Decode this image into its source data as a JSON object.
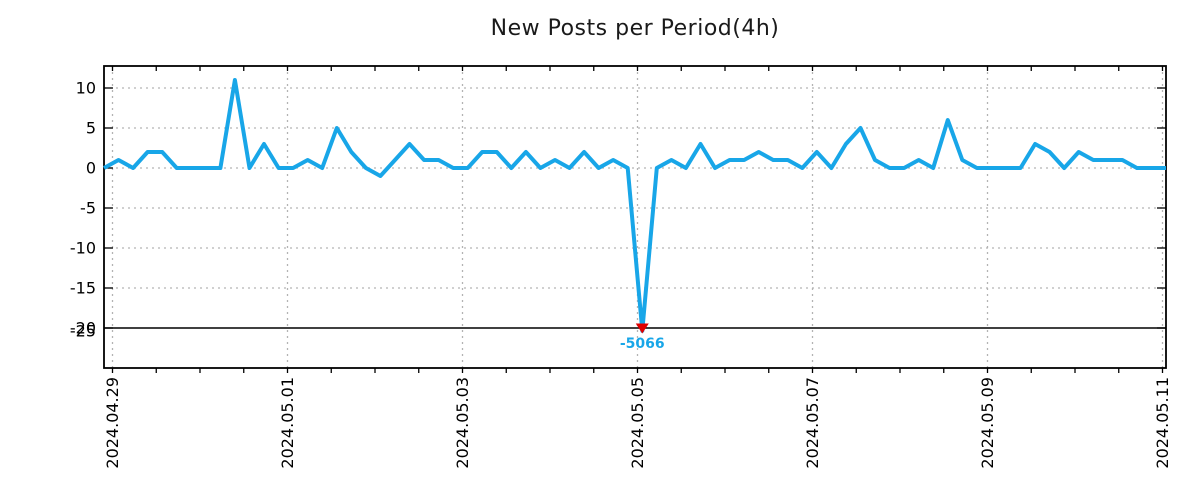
{
  "chart_data": {
    "type": "line",
    "title": "New Posts per Period(4h)",
    "x_axis": {
      "tick_labels": [
        "2024.04.29",
        "2024.05.01",
        "2024.05.03",
        "2024.05.05",
        "2024.05.07",
        "2024.05.09",
        "2024.05.11"
      ],
      "period": "4h",
      "points_per_day": 6,
      "label_rotation_deg": -90
    },
    "y_axis": {
      "tick_labels": [
        "10",
        "5",
        "0",
        "-5",
        "-10",
        "-15",
        "-20",
        "-25"
      ],
      "tick_values": [
        10,
        5,
        0,
        -5,
        -10,
        -15,
        -20,
        -25
      ],
      "grid_values": [
        10,
        5,
        0,
        -5,
        -10,
        -15
      ],
      "range": [
        -25,
        12.75
      ]
    },
    "series": [
      {
        "name": "new posts per 4h period",
        "color": "#18a6e8",
        "values": [
          0,
          1,
          0,
          2,
          2,
          0,
          0,
          0,
          0,
          11,
          0,
          3,
          0,
          0,
          1,
          0,
          5,
          2,
          0,
          -1,
          1,
          3,
          1,
          1,
          0,
          0,
          2,
          2,
          0,
          2,
          0,
          1,
          0,
          2,
          0,
          1,
          0,
          -5066,
          0,
          1,
          0,
          3,
          0,
          1,
          1,
          2,
          1,
          1,
          0,
          2,
          0,
          3,
          5,
          1,
          0,
          0,
          1,
          0,
          6,
          1,
          0,
          0,
          0,
          0,
          3,
          2,
          0,
          2,
          1,
          1,
          1,
          0,
          0,
          0
        ]
      }
    ],
    "annotation": {
      "text": "-5066",
      "value": -5066,
      "point_index": 37,
      "marker": "triangle-down",
      "marker_color": "#e00000",
      "text_color": "#18a6e8"
    },
    "min_line": {
      "value": -20,
      "color": "#000000"
    },
    "clip_min": -20.35,
    "grid": {
      "style": "dashed",
      "color": "#b3b3b3"
    },
    "background": "#ffffff"
  }
}
